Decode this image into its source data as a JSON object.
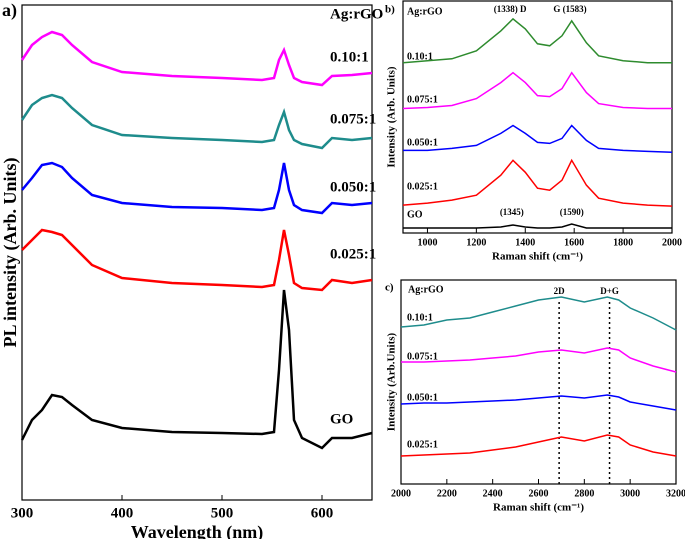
{
  "chart_data": [
    {
      "type": "line",
      "panel": "a)",
      "legend_title": "Ag:rGO",
      "xlabel": "Wavelength (nm)",
      "ylabel": "PL intensity (Arb. Units)",
      "x": [
        300,
        310,
        320,
        330,
        340,
        350,
        370,
        400,
        450,
        500,
        540,
        552,
        557,
        562,
        567,
        572,
        580,
        600,
        610,
        630,
        650
      ],
      "xlim": [
        300,
        650
      ],
      "xticks": [
        300,
        400,
        500,
        600
      ],
      "ylim": [
        0,
        495
      ],
      "series": [
        {
          "name": "0.10:1",
          "color": "#ff00ff",
          "values": [
            440,
            455,
            463,
            468,
            465,
            455,
            438,
            428,
            424,
            422,
            420,
            422,
            440,
            450,
            435,
            422,
            418,
            415,
            424,
            425,
            427
          ]
        },
        {
          "name": "0.075:1",
          "color": "#1e8c8c",
          "values": [
            380,
            395,
            402,
            405,
            402,
            392,
            375,
            365,
            362,
            360,
            358,
            360,
            375,
            388,
            370,
            360,
            356,
            352,
            362,
            360,
            362
          ]
        },
        {
          "name": "0.050:1",
          "color": "#0000ff",
          "values": [
            310,
            322,
            335,
            337,
            333,
            322,
            305,
            297,
            293,
            292,
            290,
            292,
            310,
            337,
            310,
            295,
            290,
            287,
            297,
            295,
            297
          ]
        },
        {
          "name": "0.025:1",
          "color": "#ff0000",
          "values": [
            250,
            260,
            270,
            268,
            265,
            255,
            235,
            222,
            217,
            215,
            213,
            215,
            240,
            270,
            245,
            217,
            212,
            210,
            220,
            217,
            220
          ]
        },
        {
          "name": "GO",
          "color": "#000000",
          "values": [
            60,
            80,
            90,
            105,
            103,
            95,
            80,
            72,
            68,
            67,
            66,
            68,
            130,
            210,
            170,
            80,
            62,
            52,
            62,
            62,
            67
          ]
        }
      ]
    },
    {
      "type": "line",
      "panel": "b)",
      "legend_title": "Ag:rGO",
      "xlabel": "Raman shift (cm⁻¹)",
      "ylabel": "Intensity (Arb. Units)",
      "x": [
        900,
        1000,
        1100,
        1200,
        1300,
        1350,
        1400,
        1450,
        1500,
        1550,
        1590,
        1650,
        1700,
        1800,
        1900,
        2000
      ],
      "xlim": [
        900,
        2000
      ],
      "xticks": [
        1000,
        1200,
        1400,
        1600,
        1800,
        2000
      ],
      "ylim": [
        0,
        233
      ],
      "series": [
        {
          "name": "0.10:1",
          "color": "#2e8b2e",
          "values": [
            171,
            173,
            175,
            183,
            203,
            215,
            205,
            190,
            188,
            198,
            213,
            191,
            178,
            173,
            171,
            171
          ]
        },
        {
          "name": "0.075:1",
          "color": "#ff00ff",
          "values": [
            125,
            126,
            128,
            135,
            151,
            161,
            151,
            138,
            137,
            145,
            161,
            141,
            130,
            126,
            125,
            125
          ]
        },
        {
          "name": "0.050:1",
          "color": "#0000ff",
          "values": [
            83,
            83,
            85,
            88,
            100,
            108,
            100,
            91,
            90,
            95,
            108,
            93,
            85,
            83,
            82,
            81
          ]
        },
        {
          "name": "0.025:1",
          "color": "#ff0000",
          "values": [
            28,
            30,
            33,
            38,
            58,
            73,
            61,
            45,
            43,
            53,
            73,
            48,
            35,
            30,
            28,
            27
          ]
        },
        {
          "name": "GO",
          "color": "#000000",
          "values": [
            5,
            5,
            5,
            5,
            6,
            8,
            6,
            5,
            5,
            6,
            9,
            5,
            5,
            5,
            5,
            5
          ]
        }
      ],
      "annotations": [
        {
          "text": "(1338) D",
          "x": 1338
        },
        {
          "text": "G (1583)",
          "x": 1583
        },
        {
          "text": "(1345)",
          "x": 1345
        },
        {
          "text": "(1590)",
          "x": 1590
        }
      ],
      "annotation_lines": false
    },
    {
      "type": "line",
      "panel": "c)",
      "legend_title": "Ag:rGO",
      "xlabel": "Raman shift (cm⁻¹)",
      "ylabel": "Intensity (Arb.Units)",
      "x": [
        2000,
        2100,
        2200,
        2300,
        2400,
        2500,
        2600,
        2700,
        2800,
        2900,
        2950,
        3000,
        3100,
        3200
      ],
      "xlim": [
        2000,
        3200
      ],
      "xticks": [
        2000,
        2200,
        2400,
        2600,
        2800,
        3000,
        3200
      ],
      "ylim": [
        0,
        204
      ],
      "series": [
        {
          "name": "0.10:1",
          "color": "#1e8c8c",
          "values": [
            157,
            159,
            164,
            166,
            172,
            178,
            184,
            187,
            182,
            187,
            184,
            176,
            166,
            154
          ]
        },
        {
          "name": "0.075:1",
          "color": "#ff00ff",
          "values": [
            122,
            122,
            123,
            124,
            126,
            128,
            132,
            134,
            131,
            136,
            134,
            126,
            118,
            112
          ]
        },
        {
          "name": "0.050:1",
          "color": "#0000ff",
          "values": [
            80,
            81,
            81,
            82,
            83,
            84,
            86,
            88,
            86,
            89,
            87,
            82,
            78,
            74
          ]
        },
        {
          "name": "0.025:1",
          "color": "#ff0000",
          "values": [
            28,
            29,
            30,
            31,
            34,
            37,
            42,
            47,
            43,
            49,
            47,
            39,
            32,
            28
          ]
        }
      ],
      "annotations": [
        {
          "text": "2D",
          "x": 2690
        },
        {
          "text": "D+G",
          "x": 2910
        }
      ],
      "annotation_lines": true
    }
  ]
}
